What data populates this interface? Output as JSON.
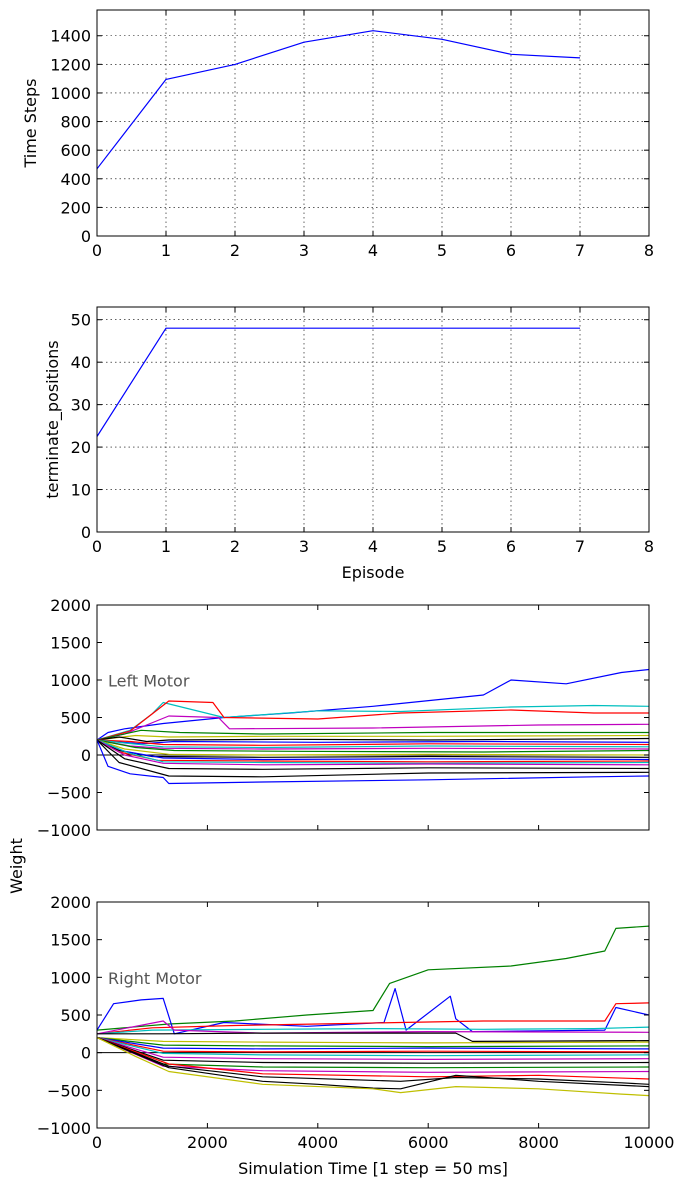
{
  "chart_data": [
    {
      "type": "line",
      "title": "",
      "xlabel": "",
      "ylabel": "Time Steps",
      "xlim": [
        0,
        8
      ],
      "ylim": [
        0,
        1580
      ],
      "xticks": [
        "0",
        "1",
        "2",
        "3",
        "4",
        "5",
        "6",
        "7",
        "8"
      ],
      "yticks": [
        "0",
        "200",
        "400",
        "600",
        "800",
        "1000",
        "1200",
        "1400"
      ],
      "grid": true,
      "series": [
        {
          "color": "#0000ff",
          "x": [
            0,
            1,
            2,
            3,
            4,
            5,
            6,
            7
          ],
          "y": [
            470,
            1095,
            1200,
            1355,
            1435,
            1375,
            1270,
            1245
          ]
        }
      ]
    },
    {
      "type": "line",
      "title": "",
      "xlabel": "Episode",
      "ylabel": "terminate_positions",
      "xlim": [
        0,
        8
      ],
      "ylim": [
        0,
        53
      ],
      "xticks": [
        "0",
        "1",
        "2",
        "3",
        "4",
        "5",
        "6",
        "7",
        "8"
      ],
      "yticks": [
        "0",
        "10",
        "20",
        "30",
        "40",
        "50"
      ],
      "grid": true,
      "series": [
        {
          "color": "#0000ff",
          "x": [
            0,
            1,
            2,
            3,
            4,
            5,
            6,
            7
          ],
          "y": [
            22.5,
            48,
            48,
            48,
            48,
            48,
            48,
            48
          ]
        }
      ]
    },
    {
      "type": "line",
      "title": "",
      "annotation": "Left Motor",
      "xlabel": "",
      "ylabel": "Weight",
      "xlim": [
        0,
        10000
      ],
      "ylim": [
        -1000,
        2000
      ],
      "xticks": [
        "",
        "",
        "",
        "",
        "",
        ""
      ],
      "yticks": [
        "−1000",
        "−500",
        "0",
        "500",
        "1000",
        "1500",
        "2000"
      ],
      "grid": false,
      "zero_line": true,
      "series": [
        {
          "color": "#0000ff",
          "x": [
            0,
            200,
            500,
            1200,
            2300,
            3500,
            5000,
            7000,
            7500,
            8500,
            9500,
            10000
          ],
          "y": [
            200,
            300,
            350,
            420,
            500,
            560,
            650,
            800,
            1000,
            950,
            1100,
            1140
          ]
        },
        {
          "color": "#00bfbf",
          "x": [
            0,
            600,
            1000,
            1200,
            2300,
            4000,
            5500,
            7500,
            9000,
            10000
          ],
          "y": [
            200,
            330,
            550,
            700,
            500,
            590,
            580,
            640,
            660,
            650
          ]
        },
        {
          "color": "#ff0000",
          "x": [
            0,
            600,
            1300,
            2100,
            2300,
            4000,
            5500,
            7500,
            9000,
            10000
          ],
          "y": [
            200,
            320,
            720,
            700,
            500,
            480,
            560,
            600,
            560,
            560
          ]
        },
        {
          "color": "#bf00bf",
          "x": [
            0,
            500,
            1300,
            2200,
            2400,
            5000,
            8000,
            10000
          ],
          "y": [
            200,
            280,
            520,
            500,
            350,
            360,
            400,
            410
          ]
        },
        {
          "color": "#008000",
          "x": [
            0,
            800,
            1500,
            3000,
            6000,
            10000
          ],
          "y": [
            200,
            330,
            300,
            280,
            300,
            300
          ]
        },
        {
          "color": "#bfbf00",
          "x": [
            0,
            700,
            1300,
            3000,
            6000,
            10000
          ],
          "y": [
            200,
            260,
            240,
            250,
            250,
            260
          ]
        },
        {
          "color": "#000000",
          "x": [
            0,
            400,
            900,
            1300,
            3500,
            6000,
            10000
          ],
          "y": [
            200,
            240,
            180,
            200,
            210,
            200,
            220
          ]
        },
        {
          "color": "#0000ff",
          "x": [
            0,
            800,
            1400,
            4000,
            7000,
            10000
          ],
          "y": [
            200,
            150,
            180,
            170,
            180,
            170
          ]
        },
        {
          "color": "#ff0000",
          "x": [
            0,
            600,
            1200,
            3000,
            6000,
            10000
          ],
          "y": [
            200,
            180,
            140,
            130,
            150,
            140
          ]
        },
        {
          "color": "#00bfbf",
          "x": [
            0,
            500,
            1200,
            3000,
            6000,
            10000
          ],
          "y": [
            200,
            160,
            110,
            100,
            120,
            110
          ]
        },
        {
          "color": "#bf00bf",
          "x": [
            0,
            600,
            1200,
            3000,
            6000,
            10000
          ],
          "y": [
            200,
            120,
            90,
            80,
            90,
            80
          ]
        },
        {
          "color": "#008000",
          "x": [
            0,
            700,
            1400,
            3500,
            7000,
            10000
          ],
          "y": [
            200,
            100,
            60,
            50,
            40,
            60
          ]
        },
        {
          "color": "#bfbf00",
          "x": [
            0,
            500,
            1300,
            3000,
            6000,
            10000
          ],
          "y": [
            200,
            80,
            10,
            0,
            10,
            0
          ]
        },
        {
          "color": "#000000",
          "x": [
            0,
            400,
            1000,
            3000,
            6000,
            10000
          ],
          "y": [
            200,
            60,
            -20,
            -30,
            -20,
            -30
          ]
        },
        {
          "color": "#0000ff",
          "x": [
            0,
            500,
            1200,
            3000,
            6000,
            10000
          ],
          "y": [
            200,
            50,
            -40,
            -60,
            -50,
            -60
          ]
        },
        {
          "color": "#ff0000",
          "x": [
            0,
            400,
            1100,
            3000,
            6000,
            10000
          ],
          "y": [
            200,
            40,
            -70,
            -80,
            -90,
            -80
          ]
        },
        {
          "color": "#00bfbf",
          "x": [
            0,
            600,
            1200,
            3000,
            6000,
            10000
          ],
          "y": [
            200,
            20,
            -90,
            -100,
            -110,
            -100
          ]
        },
        {
          "color": "#bf00bf",
          "x": [
            0,
            500,
            1200,
            3000,
            6000,
            10000
          ],
          "y": [
            200,
            0,
            -110,
            -130,
            -120,
            -130
          ]
        },
        {
          "color": "#000000",
          "x": [
            0,
            500,
            1300,
            3000,
            6000,
            10000
          ],
          "y": [
            200,
            -50,
            -180,
            -190,
            -170,
            -180
          ]
        },
        {
          "color": "#000000",
          "x": [
            0,
            400,
            1300,
            3000,
            6000,
            10000
          ],
          "y": [
            200,
            -100,
            -280,
            -290,
            -240,
            -230
          ]
        },
        {
          "color": "#0000ff",
          "x": [
            0,
            200,
            600,
            1200,
            1300,
            3000,
            6000,
            9000,
            10000
          ],
          "y": [
            200,
            -150,
            -250,
            -300,
            -380,
            -360,
            -330,
            -290,
            -280
          ]
        }
      ]
    },
    {
      "type": "line",
      "title": "",
      "annotation": "Right Motor",
      "xlabel": "Simulation Time [1 step = 50 ms]",
      "ylabel": "Weight",
      "xlim": [
        0,
        10000
      ],
      "ylim": [
        -1000,
        2000
      ],
      "xticks": [
        "0",
        "2000",
        "4000",
        "6000",
        "8000",
        "10000"
      ],
      "yticks": [
        "−1000",
        "−500",
        "0",
        "500",
        "1000",
        "1500",
        "2000"
      ],
      "grid": false,
      "zero_line": true,
      "series": [
        {
          "color": "#008000",
          "x": [
            0,
            1300,
            2500,
            3800,
            5000,
            5300,
            6000,
            7500,
            8500,
            9200,
            9400,
            10000
          ],
          "y": [
            300,
            380,
            420,
            500,
            560,
            920,
            1100,
            1150,
            1250,
            1350,
            1650,
            1680
          ]
        },
        {
          "color": "#0000ff",
          "x": [
            0,
            300,
            800,
            1200,
            1400,
            2300,
            3800,
            5200,
            5400,
            5600,
            6400,
            6500,
            6800,
            9200,
            9400,
            10000
          ],
          "y": [
            300,
            650,
            700,
            720,
            250,
            400,
            350,
            400,
            850,
            300,
            750,
            450,
            280,
            300,
            600,
            500
          ]
        },
        {
          "color": "#ff0000",
          "x": [
            0,
            1000,
            2500,
            4000,
            5500,
            7000,
            9200,
            9400,
            10000
          ],
          "y": [
            250,
            330,
            360,
            380,
            400,
            420,
            420,
            650,
            660
          ]
        },
        {
          "color": "#00bfbf",
          "x": [
            0,
            1000,
            3000,
            5000,
            7000,
            9000,
            10000
          ],
          "y": [
            250,
            300,
            310,
            320,
            310,
            320,
            340
          ]
        },
        {
          "color": "#bf00bf",
          "x": [
            0,
            1200,
            1400,
            3000,
            6000,
            10000
          ],
          "y": [
            250,
            420,
            300,
            260,
            280,
            270
          ]
        },
        {
          "color": "#000000",
          "x": [
            0,
            1200,
            3000,
            6500,
            6800,
            10000
          ],
          "y": [
            250,
            250,
            260,
            260,
            150,
            160
          ]
        },
        {
          "color": "#bfbf00",
          "x": [
            0,
            1200,
            3000,
            6000,
            10000
          ],
          "y": [
            200,
            150,
            140,
            130,
            140
          ]
        },
        {
          "color": "#008000",
          "x": [
            0,
            1200,
            3000,
            6000,
            10000
          ],
          "y": [
            200,
            100,
            90,
            80,
            90
          ]
        },
        {
          "color": "#0000ff",
          "x": [
            0,
            1200,
            3000,
            6000,
            10000
          ],
          "y": [
            200,
            60,
            50,
            60,
            50
          ]
        },
        {
          "color": "#ff0000",
          "x": [
            0,
            1200,
            3000,
            6000,
            10000
          ],
          "y": [
            200,
            20,
            10,
            20,
            10
          ]
        },
        {
          "color": "#00bfbf",
          "x": [
            0,
            1200,
            3000,
            6000,
            10000
          ],
          "y": [
            200,
            -10,
            -30,
            -40,
            -30
          ]
        },
        {
          "color": "#bf00bf",
          "x": [
            0,
            1200,
            3000,
            6000,
            10000
          ],
          "y": [
            200,
            -60,
            -80,
            -90,
            -80
          ]
        },
        {
          "color": "#000000",
          "x": [
            0,
            1200,
            3000,
            6000,
            10000
          ],
          "y": [
            200,
            -100,
            -130,
            -140,
            -130
          ]
        },
        {
          "color": "#008000",
          "x": [
            0,
            1200,
            3000,
            6000,
            10000
          ],
          "y": [
            200,
            -150,
            -190,
            -200,
            -190
          ]
        },
        {
          "color": "#bf00bf",
          "x": [
            0,
            1200,
            3000,
            6000,
            10000
          ],
          "y": [
            200,
            -180,
            -240,
            -260,
            -250
          ]
        },
        {
          "color": "#ff0000",
          "x": [
            0,
            1300,
            3000,
            6000,
            8000,
            10000
          ],
          "y": [
            200,
            -150,
            -280,
            -320,
            -300,
            -350
          ]
        },
        {
          "color": "#000000",
          "x": [
            0,
            1300,
            3000,
            5500,
            6500,
            8000,
            9500,
            10000
          ],
          "y": [
            200,
            -180,
            -320,
            -380,
            -330,
            -350,
            -400,
            -420
          ]
        },
        {
          "color": "#000000",
          "x": [
            0,
            1300,
            3000,
            4000,
            5000,
            5500,
            6500,
            8000,
            10000
          ],
          "y": [
            200,
            -200,
            -380,
            -420,
            -470,
            -480,
            -300,
            -380,
            -450
          ]
        },
        {
          "color": "#bfbf00",
          "x": [
            0,
            700,
            1300,
            3000,
            5000,
            5500,
            6500,
            8000,
            9500,
            10000
          ],
          "y": [
            200,
            -50,
            -250,
            -420,
            -480,
            -530,
            -450,
            -480,
            -550,
            -570
          ]
        }
      ]
    }
  ]
}
